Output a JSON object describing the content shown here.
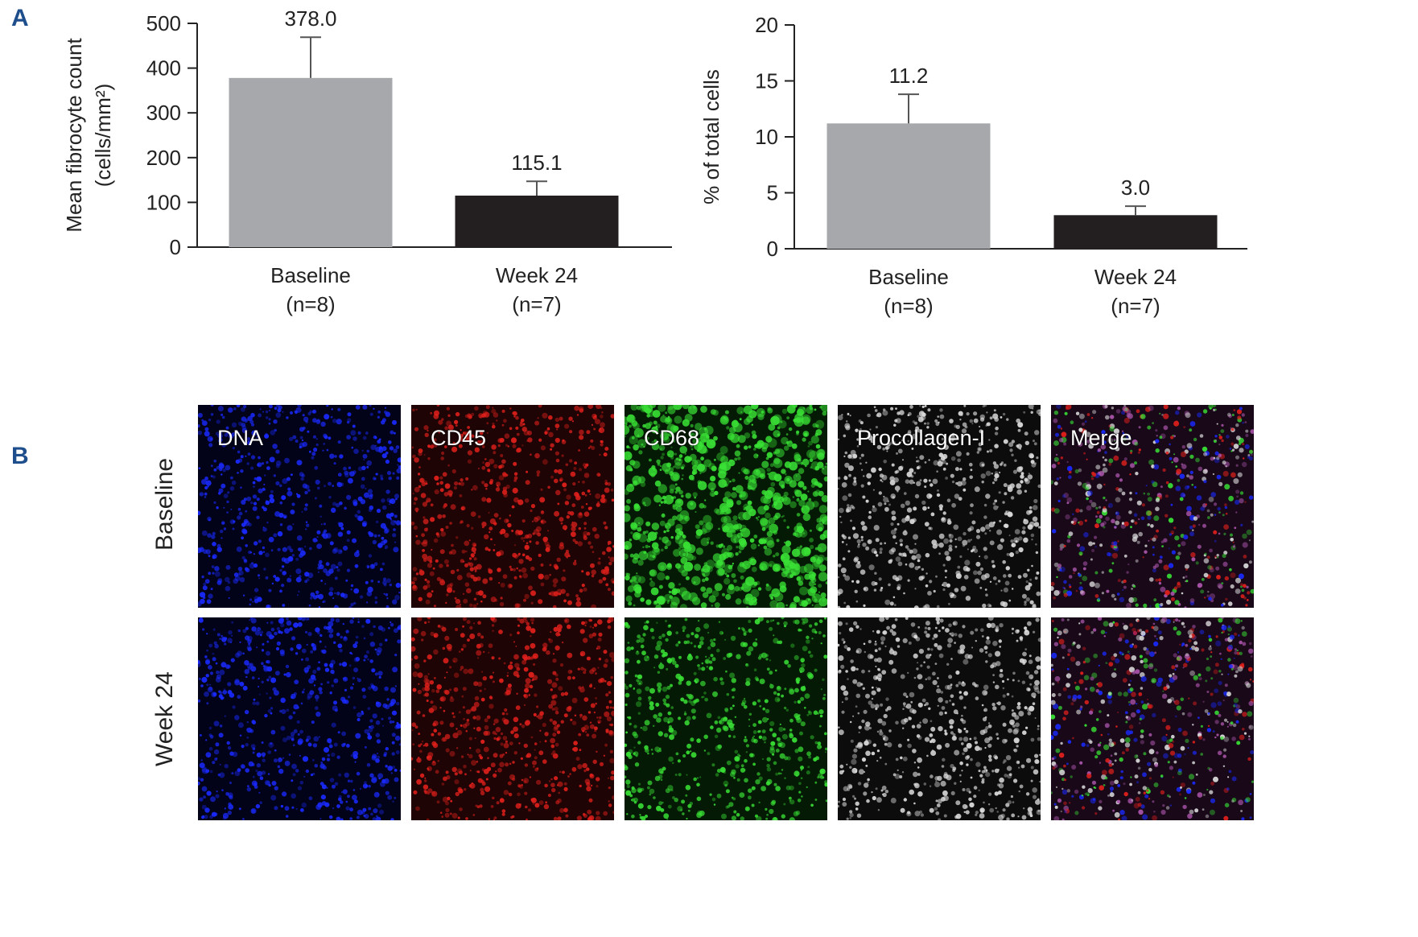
{
  "panels": {
    "a": "A",
    "b": "B"
  },
  "chart_data": [
    {
      "type": "bar",
      "categories": [
        "Baseline",
        "Week 24"
      ],
      "category_sub": [
        "(n=8)",
        "(n=7)"
      ],
      "values": [
        378.0,
        115.1
      ],
      "errors": [
        91,
        32
      ],
      "value_labels": [
        "378.0",
        "115.1"
      ],
      "colors": [
        "#a7a8ab",
        "#231f20"
      ],
      "ylabel_line1": "Mean fibrocyte count",
      "ylabel_line2": "(cells/mm²)",
      "ylim": [
        0,
        500
      ],
      "yticks": [
        0,
        100,
        200,
        300,
        400,
        500
      ]
    },
    {
      "type": "bar",
      "categories": [
        "Baseline",
        "Week 24"
      ],
      "category_sub": [
        "(n=8)",
        "(n=7)"
      ],
      "values": [
        11.2,
        3.0
      ],
      "errors": [
        2.6,
        0.8
      ],
      "value_labels": [
        "11.2",
        "3.0"
      ],
      "colors": [
        "#a7a8ab",
        "#231f20"
      ],
      "ylabel_line1": "% of total cells",
      "ylabel_line2": "",
      "ylim": [
        0,
        20
      ],
      "yticks": [
        0,
        5,
        10,
        15,
        20
      ]
    }
  ],
  "micrographs": {
    "rows": [
      "Baseline",
      "Week 24"
    ],
    "stains": [
      {
        "label": "DNA",
        "color": "#1a2aff",
        "bg": "#020318"
      },
      {
        "label": "CD45",
        "color": "#e0201c",
        "bg": "#1e0404"
      },
      {
        "label": "CD68",
        "color": "#39e035",
        "bg": "#041a04"
      },
      {
        "label": "Procollagen-I",
        "color": "#dcdcdc",
        "bg": "#0c0c0c"
      },
      {
        "label": "Merge",
        "color": "#aa55aa",
        "bg": "#180818"
      }
    ]
  }
}
